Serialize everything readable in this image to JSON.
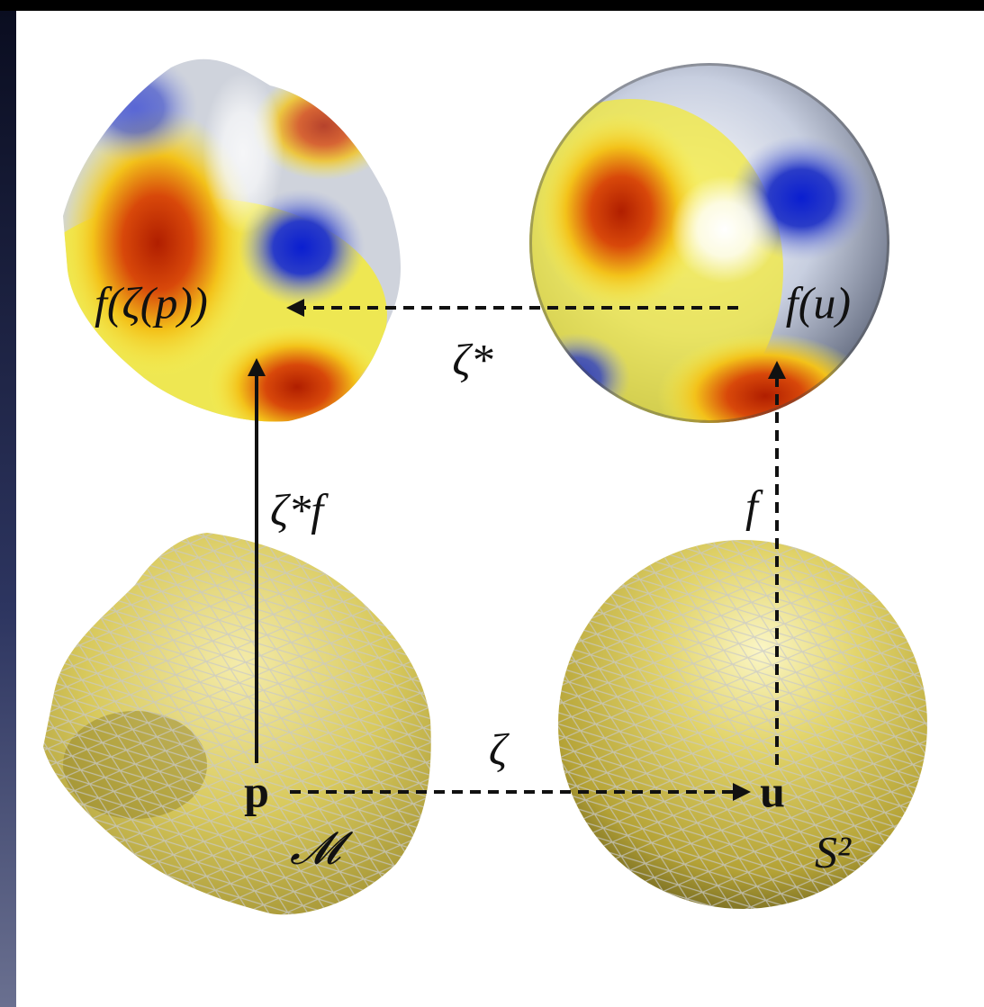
{
  "labels": {
    "pullback_value": "f(ζ(p))",
    "sphere_value": "f(u)",
    "pullback_operator": "ζ*",
    "pulled_function": "ζ*f",
    "function": "f",
    "point_on_mesh": "p",
    "map": "ζ",
    "point_on_sphere": "u",
    "mesh_name": "𝓜",
    "sphere_name": "S²"
  }
}
